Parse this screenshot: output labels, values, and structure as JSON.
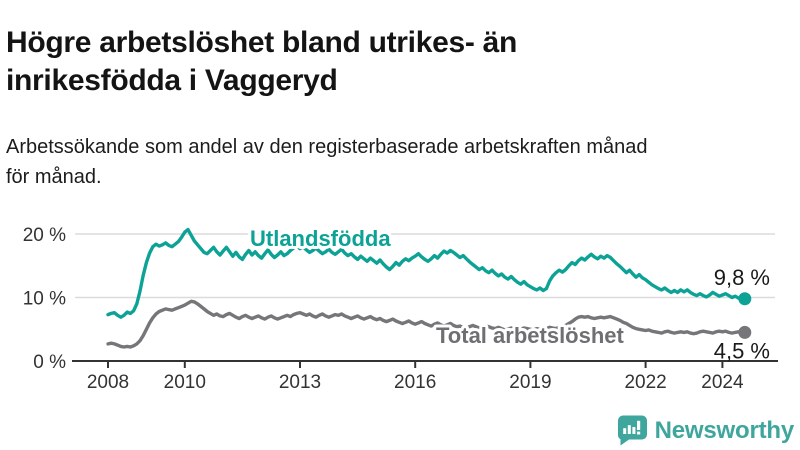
{
  "header": {
    "title": "Högre arbetslöshet bland utrikes- än\ninrikesfödda i Vaggeryd",
    "subtitle": "Arbetssökande som andel av den registerbaserade arbetskraften månad\nför månad."
  },
  "chart_data": {
    "type": "line",
    "title": "Högre arbetslöshet bland utrikes- än inrikesfödda i Vaggeryd",
    "subtitle": "Arbetssökande som andel av den registerbaserade arbetskraften månad för månad.",
    "unit": "%",
    "x_start_year": 2008,
    "x_start_month": 1,
    "x_months_per_point": 1,
    "xlim": [
      2008,
      2024.67
    ],
    "ylim": [
      0,
      22
    ],
    "grid": "horizontal",
    "legend_position": "inline-labels",
    "xticks": [
      {
        "value": 2008,
        "label": "2008"
      },
      {
        "value": 2010,
        "label": "2010"
      },
      {
        "value": 2013,
        "label": "2013"
      },
      {
        "value": 2016,
        "label": "2016"
      },
      {
        "value": 2019,
        "label": "2019"
      },
      {
        "value": 2022,
        "label": "2022"
      },
      {
        "value": 2024,
        "label": "2024"
      }
    ],
    "yticks": [
      {
        "value": 0,
        "label": "0 %"
      },
      {
        "value": 10,
        "label": "10 %"
      },
      {
        "value": 20,
        "label": "20 %"
      }
    ],
    "series": [
      {
        "name": "Utlandsfödda",
        "color": "#0DA296",
        "end_label": "9,8 %",
        "end_value": 9.8,
        "values": [
          7.3,
          7.5,
          7.6,
          7.2,
          6.9,
          7.2,
          7.7,
          7.5,
          7.9,
          9.0,
          11.0,
          13.5,
          15.5,
          17.0,
          18.0,
          18.4,
          18.1,
          18.3,
          18.6,
          18.2,
          18.0,
          18.4,
          18.8,
          19.5,
          20.3,
          20.7,
          19.8,
          18.9,
          18.3,
          17.7,
          17.1,
          16.9,
          17.4,
          17.9,
          17.2,
          16.7,
          17.3,
          17.9,
          17.2,
          16.5,
          17.1,
          16.4,
          16.0,
          16.8,
          17.4,
          16.7,
          17.2,
          16.6,
          16.2,
          16.9,
          17.5,
          16.8,
          16.3,
          16.7,
          17.2,
          16.6,
          16.9,
          17.4,
          17.8,
          18.1,
          17.7,
          18.0,
          17.5,
          17.1,
          17.4,
          17.8,
          17.3,
          16.9,
          17.2,
          17.6,
          17.1,
          16.8,
          17.2,
          17.6,
          17.0,
          16.6,
          16.9,
          16.4,
          16.0,
          16.5,
          16.1,
          15.7,
          16.2,
          15.8,
          15.4,
          15.9,
          15.3,
          14.8,
          14.4,
          14.9,
          15.5,
          15.1,
          15.7,
          16.1,
          15.8,
          16.2,
          16.5,
          16.9,
          16.4,
          16.0,
          15.7,
          16.1,
          16.6,
          16.2,
          16.8,
          17.3,
          17.0,
          17.4,
          17.1,
          16.7,
          16.3,
          16.6,
          16.1,
          15.6,
          15.2,
          14.8,
          14.4,
          14.7,
          14.2,
          13.9,
          14.3,
          13.8,
          13.4,
          13.7,
          13.2,
          12.9,
          13.3,
          12.8,
          12.4,
          12.1,
          12.5,
          12.0,
          11.7,
          11.4,
          11.2,
          11.5,
          11.1,
          11.4,
          12.6,
          13.4,
          13.9,
          14.3,
          14.0,
          14.4,
          15.0,
          15.5,
          15.2,
          15.8,
          16.2,
          15.9,
          16.4,
          16.8,
          16.4,
          16.1,
          16.5,
          16.2,
          16.6,
          16.3,
          15.8,
          15.3,
          14.9,
          14.4,
          13.9,
          14.3,
          13.7,
          13.2,
          13.6,
          13.1,
          12.8,
          12.4,
          12.0,
          11.7,
          11.4,
          11.2,
          11.5,
          11.1,
          10.8,
          11.1,
          10.8,
          11.2,
          10.9,
          11.2,
          10.8,
          10.5,
          10.3,
          10.6,
          10.3,
          10.1,
          10.4,
          10.8,
          10.5,
          10.2,
          10.4,
          10.6,
          10.3,
          10.0,
          10.2,
          9.9,
          9.7,
          9.8
        ]
      },
      {
        "name": "Total arbetslöshet",
        "color": "#76767A",
        "end_label": "4,5 %",
        "end_value": 4.5,
        "values": [
          2.7,
          2.8,
          2.7,
          2.5,
          2.3,
          2.2,
          2.3,
          2.2,
          2.4,
          2.7,
          3.2,
          4.0,
          5.0,
          6.0,
          6.8,
          7.4,
          7.8,
          8.0,
          8.2,
          8.1,
          8.0,
          8.2,
          8.4,
          8.6,
          8.8,
          9.1,
          9.4,
          9.3,
          9.0,
          8.6,
          8.2,
          7.8,
          7.5,
          7.2,
          7.4,
          7.1,
          7.0,
          7.3,
          7.5,
          7.2,
          6.9,
          6.7,
          7.0,
          7.2,
          6.9,
          6.7,
          6.9,
          7.1,
          6.8,
          6.6,
          6.9,
          7.1,
          6.8,
          6.6,
          6.8,
          7.0,
          7.2,
          7.0,
          7.3,
          7.5,
          7.6,
          7.4,
          7.2,
          7.4,
          7.1,
          6.9,
          7.2,
          7.4,
          7.1,
          6.9,
          7.1,
          7.3,
          7.2,
          7.4,
          7.1,
          6.9,
          6.7,
          6.9,
          7.1,
          6.8,
          6.6,
          6.8,
          7.0,
          6.7,
          6.5,
          6.7,
          6.4,
          6.2,
          6.4,
          6.6,
          6.3,
          6.1,
          5.9,
          6.1,
          6.3,
          6.0,
          5.8,
          6.0,
          6.2,
          5.9,
          5.7,
          5.5,
          5.8,
          6.0,
          5.7,
          5.5,
          5.7,
          5.9,
          5.6,
          5.4,
          5.5,
          5.3,
          5.2,
          5.4,
          5.6,
          5.4,
          5.2,
          5.3,
          5.5,
          5.4,
          5.2,
          5.1,
          5.3,
          5.1,
          4.9,
          5.0,
          5.2,
          5.1,
          4.9,
          5.0,
          5.2,
          5.1,
          5.0,
          4.9,
          5.1,
          5.0,
          4.9,
          5.1,
          5.3,
          5.2,
          5.1,
          5.3,
          5.5,
          5.6,
          5.9,
          6.2,
          6.6,
          6.9,
          7.0,
          6.9,
          7.0,
          6.8,
          6.7,
          6.8,
          6.9,
          6.8,
          6.9,
          7.0,
          6.8,
          6.6,
          6.4,
          6.1,
          5.9,
          5.6,
          5.3,
          5.1,
          5.0,
          4.9,
          4.8,
          4.9,
          4.7,
          4.6,
          4.5,
          4.4,
          4.6,
          4.7,
          4.5,
          4.4,
          4.5,
          4.6,
          4.5,
          4.6,
          4.4,
          4.3,
          4.4,
          4.6,
          4.7,
          4.6,
          4.5,
          4.4,
          4.6,
          4.7,
          4.6,
          4.7,
          4.5,
          4.4,
          4.5,
          4.6,
          4.4,
          4.5
        ]
      }
    ],
    "colors": {
      "grid": "#DBDBDB",
      "axis": "#333333",
      "text": "#333333"
    }
  },
  "footer": {
    "logo_text": "Newsworthy",
    "logo_color": "#3FA69D",
    "logo_icon": "speech-bubble-bar-chart-exclamation"
  }
}
